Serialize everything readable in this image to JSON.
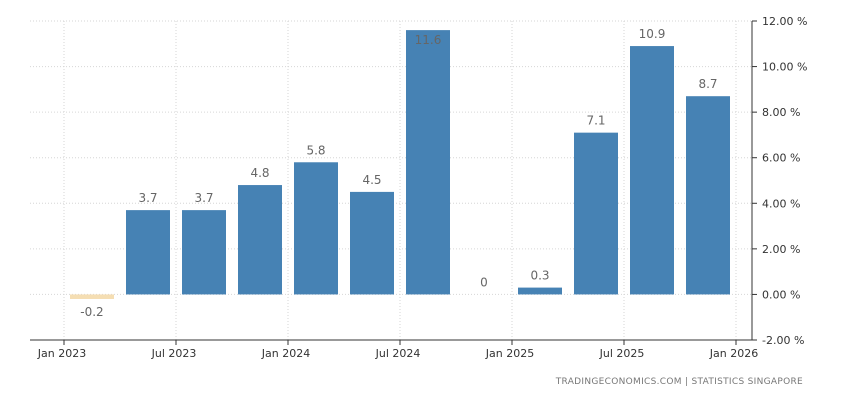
{
  "chart_data": {
    "type": "bar",
    "categories": [
      "2023-Q1",
      "2023-Q2",
      "2023-Q3",
      "2023-Q4",
      "2024-Q1",
      "2024-Q2",
      "2024-Q3",
      "2024-Q4",
      "2025-Q1",
      "2025-Q2",
      "2025-Q3",
      "2025-Q4"
    ],
    "values": [
      -0.2,
      3.7,
      3.7,
      4.8,
      5.8,
      4.5,
      11.6,
      0,
      0.3,
      7.1,
      10.9,
      8.7
    ],
    "value_labels": [
      "-0.2",
      "3.7",
      "3.7",
      "4.8",
      "5.8",
      "4.5",
      "11.6",
      "0",
      "0.3",
      "7.1",
      "10.9",
      "8.7"
    ],
    "ylim": [
      -2,
      12
    ],
    "yticks": [
      12,
      10,
      8,
      6,
      4,
      2,
      0,
      -2
    ],
    "ytick_labels": [
      "12.00 %",
      "10.00 %",
      "8.00 %",
      "6.00 %",
      "4.00 %",
      "2.00 %",
      "0.00 %",
      "-2.00 %"
    ],
    "xtick_labels": [
      "Jan 2023",
      "Jul 2023",
      "Jan 2024",
      "Jul 2024",
      "Jan 2025",
      "Jul 2025",
      "Jan 2026"
    ],
    "grid": true,
    "y_axis_side": "right",
    "colors": {
      "positive": "#4682b4",
      "negative": "#f5deb3"
    }
  },
  "credit": "TRADINGECONOMICS.COM  |  STATISTICS SINGAPORE"
}
